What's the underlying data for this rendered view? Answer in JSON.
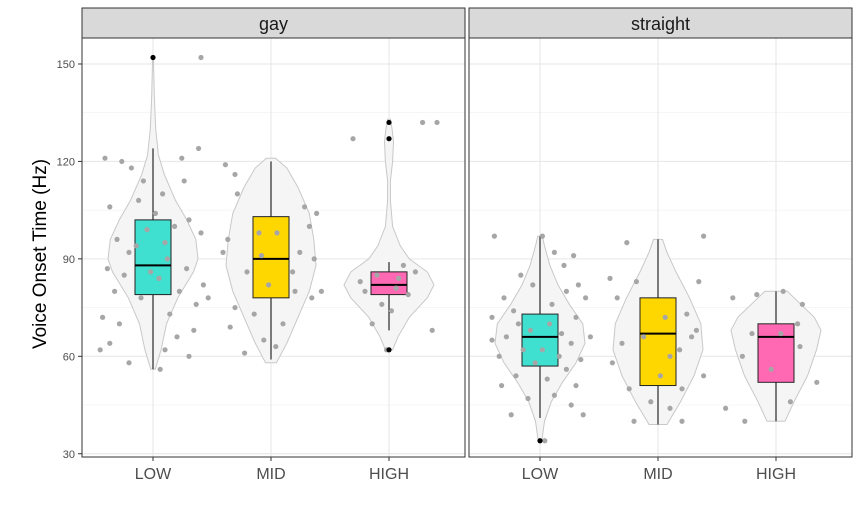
{
  "chart_data": {
    "type": "violin-boxplot",
    "ylabel": "Voice Onset Time (Hz)",
    "ylim": [
      29,
      158
    ],
    "yticks": [
      30,
      60,
      90,
      120,
      150
    ],
    "categories": [
      "LOW",
      "MID",
      "HIGH"
    ],
    "grid": true,
    "colors": {
      "LOW": "#40E0D0",
      "MID": "#FFD700",
      "HIGH": "#FF69B4"
    },
    "panels": [
      {
        "facet": "gay",
        "groups": [
          {
            "category": "LOW",
            "box": {
              "q1": 79,
              "median": 88,
              "q3": 102,
              "whisker_low": 56,
              "whisker_high": 124
            },
            "outliers": [
              152
            ],
            "violin": [
              [
                56,
                0.05
              ],
              [
                62,
                0.18
              ],
              [
                70,
                0.3
              ],
              [
                78,
                0.55
              ],
              [
                86,
                0.9
              ],
              [
                90,
                1.0
              ],
              [
                96,
                0.95
              ],
              [
                102,
                0.75
              ],
              [
                108,
                0.5
              ],
              [
                116,
                0.25
              ],
              [
                122,
                0.12
              ],
              [
                130,
                0.06
              ],
              [
                140,
                0.03
              ],
              [
                152,
                0.01
              ]
            ],
            "points": [
              [
                -0.4,
                121
              ],
              [
                -0.26,
                120
              ],
              [
                -0.18,
                118
              ],
              [
                0.24,
                121
              ],
              [
                0.38,
                124
              ],
              [
                -0.36,
                106
              ],
              [
                -0.12,
                108
              ],
              [
                0.08,
                110
              ],
              [
                0.3,
                102
              ],
              [
                0.4,
                98
              ],
              [
                -0.3,
                96
              ],
              [
                -0.2,
                92
              ],
              [
                0.18,
                100
              ],
              [
                -0.05,
                99
              ],
              [
                0.1,
                95
              ],
              [
                -0.38,
                87
              ],
              [
                -0.24,
                85
              ],
              [
                0.28,
                87
              ],
              [
                0.42,
                82
              ],
              [
                -0.32,
                80
              ],
              [
                0.22,
                80
              ],
              [
                0.36,
                76
              ],
              [
                -0.1,
                78
              ],
              [
                0.05,
                84
              ],
              [
                -0.42,
                72
              ],
              [
                -0.28,
                70
              ],
              [
                0.14,
                73
              ],
              [
                -0.36,
                64
              ],
              [
                0.2,
                66
              ],
              [
                0.3,
                60
              ],
              [
                -0.2,
                58
              ],
              [
                0.06,
                56
              ],
              [
                -0.44,
                62
              ],
              [
                0.34,
                68
              ],
              [
                -0.02,
                86
              ],
              [
                0.12,
                90
              ],
              [
                -0.14,
                94
              ],
              [
                0.02,
                104
              ],
              [
                0.26,
                114
              ],
              [
                -0.08,
                114
              ],
              [
                0.4,
                152
              ],
              [
                0.46,
                78
              ],
              [
                0.1,
                62
              ]
            ]
          },
          {
            "category": "MID",
            "box": {
              "q1": 78,
              "median": 90,
              "q3": 103,
              "whisker_low": 59,
              "whisker_high": 120
            },
            "outliers": [],
            "violin": [
              [
                58,
                0.12
              ],
              [
                64,
                0.35
              ],
              [
                72,
                0.6
              ],
              [
                80,
                0.85
              ],
              [
                88,
                1.0
              ],
              [
                96,
                0.95
              ],
              [
                104,
                0.85
              ],
              [
                112,
                0.6
              ],
              [
                118,
                0.35
              ],
              [
                121,
                0.1
              ]
            ],
            "points": [
              [
                -0.38,
                119
              ],
              [
                -0.3,
                116
              ],
              [
                -0.28,
                110
              ],
              [
                0.28,
                106
              ],
              [
                0.38,
                104
              ],
              [
                -0.36,
                96
              ],
              [
                -0.1,
                98
              ],
              [
                0.05,
                98
              ],
              [
                -0.4,
                92
              ],
              [
                0.24,
                92
              ],
              [
                0.36,
                90
              ],
              [
                -0.2,
                86
              ],
              [
                -0.02,
                82
              ],
              [
                0.2,
                80
              ],
              [
                0.34,
                78
              ],
              [
                -0.3,
                75
              ],
              [
                -0.14,
                73
              ],
              [
                0.1,
                70
              ],
              [
                -0.34,
                69
              ],
              [
                -0.06,
                65
              ],
              [
                0.04,
                63
              ],
              [
                -0.22,
                61
              ],
              [
                0.42,
                80
              ],
              [
                0.32,
                100
              ],
              [
                0.18,
                86
              ],
              [
                -0.08,
                91
              ]
            ]
          },
          {
            "category": "HIGH",
            "box": {
              "q1": 79,
              "median": 82,
              "q3": 86,
              "whisker_low": 68,
              "whisker_high": 89
            },
            "outliers": [
              62,
              127,
              132
            ],
            "violin": [
              [
                62,
                0.08
              ],
              [
                66,
                0.2
              ],
              [
                72,
                0.45
              ],
              [
                78,
                0.85
              ],
              [
                82,
                1.0
              ],
              [
                86,
                0.85
              ],
              [
                90,
                0.45
              ],
              [
                94,
                0.25
              ],
              [
                100,
                0.08
              ],
              [
                108,
                0.03
              ],
              [
                114,
                0.03
              ],
              [
                120,
                0.08
              ],
              [
                126,
                0.1
              ],
              [
                130,
                0.07
              ],
              [
                133,
                0.03
              ]
            ],
            "points": [
              [
                -0.3,
                127
              ],
              [
                0.28,
                132
              ],
              [
                -0.1,
                85
              ],
              [
                0.08,
                84
              ],
              [
                -0.2,
                80
              ],
              [
                0.16,
                79
              ],
              [
                -0.06,
                76
              ],
              [
                0.02,
                74
              ],
              [
                -0.14,
                70
              ],
              [
                0.22,
                86
              ],
              [
                -0.24,
                83
              ],
              [
                0.06,
                81
              ],
              [
                0.36,
                68
              ],
              [
                -0.02,
                62
              ],
              [
                0.4,
                132
              ],
              [
                0.12,
                88
              ]
            ]
          }
        ]
      },
      {
        "facet": "straight",
        "groups": [
          {
            "category": "LOW",
            "box": {
              "q1": 57,
              "median": 66,
              "q3": 73,
              "whisker_low": 41,
              "whisker_high": 97
            },
            "outliers": [
              34
            ],
            "violin": [
              [
                34,
                0.04
              ],
              [
                40,
                0.1
              ],
              [
                46,
                0.25
              ],
              [
                52,
                0.5
              ],
              [
                58,
                0.8
              ],
              [
                64,
                1.0
              ],
              [
                70,
                0.95
              ],
              [
                76,
                0.65
              ],
              [
                82,
                0.4
              ],
              [
                88,
                0.22
              ],
              [
                94,
                0.1
              ],
              [
                97,
                0.05
              ]
            ],
            "points": [
              [
                -0.38,
                97
              ],
              [
                0.02,
                97
              ],
              [
                0.12,
                92
              ],
              [
                0.28,
                91
              ],
              [
                -0.16,
                85
              ],
              [
                0.32,
                82
              ],
              [
                0.22,
                80
              ],
              [
                -0.3,
                78
              ],
              [
                0.38,
                78
              ],
              [
                -0.22,
                74
              ],
              [
                0.3,
                72
              ],
              [
                -0.4,
                72
              ],
              [
                0.08,
                70
              ],
              [
                -0.08,
                68
              ],
              [
                0.18,
                67
              ],
              [
                -0.28,
                66
              ],
              [
                0.26,
                64
              ],
              [
                0.02,
                62
              ],
              [
                -0.14,
                62
              ],
              [
                0.16,
                60
              ],
              [
                -0.34,
                60
              ],
              [
                0.34,
                59
              ],
              [
                -0.04,
                58
              ],
              [
                0.22,
                56
              ],
              [
                -0.2,
                54
              ],
              [
                0.06,
                53
              ],
              [
                0.3,
                51
              ],
              [
                -0.32,
                51
              ],
              [
                0.12,
                48
              ],
              [
                -0.1,
                47
              ],
              [
                0.26,
                45
              ],
              [
                0.36,
                42
              ],
              [
                -0.24,
                42
              ],
              [
                0.42,
                66
              ],
              [
                -0.4,
                65
              ],
              [
                0.1,
                76
              ],
              [
                -0.06,
                82
              ],
              [
                0.2,
                88
              ],
              [
                -0.18,
                70
              ],
              [
                0.04,
                34
              ]
            ]
          },
          {
            "category": "MID",
            "box": {
              "q1": 51,
              "median": 67,
              "q3": 78,
              "whisker_low": 39,
              "whisker_high": 96
            },
            "outliers": [],
            "violin": [
              [
                39,
                0.2
              ],
              [
                46,
                0.5
              ],
              [
                54,
                0.8
              ],
              [
                62,
                1.0
              ],
              [
                70,
                0.95
              ],
              [
                78,
                0.7
              ],
              [
                86,
                0.4
              ],
              [
                92,
                0.2
              ],
              [
                96,
                0.1
              ]
            ],
            "points": [
              [
                -0.26,
                95
              ],
              [
                0.38,
                97
              ],
              [
                -0.4,
                84
              ],
              [
                -0.18,
                83
              ],
              [
                0.34,
                83
              ],
              [
                -0.34,
                78
              ],
              [
                0.24,
                73
              ],
              [
                0.32,
                68
              ],
              [
                0.28,
                66
              ],
              [
                -0.3,
                64
              ],
              [
                0.18,
                62
              ],
              [
                0.1,
                60
              ],
              [
                -0.38,
                58
              ],
              [
                0.02,
                54
              ],
              [
                0.38,
                54
              ],
              [
                -0.24,
                50
              ],
              [
                0.2,
                50
              ],
              [
                -0.06,
                46
              ],
              [
                0.1,
                44
              ],
              [
                -0.2,
                40
              ],
              [
                0.2,
                40
              ],
              [
                0.06,
                72
              ],
              [
                -0.12,
                66
              ]
            ]
          },
          {
            "category": "HIGH",
            "box": {
              "q1": 52,
              "median": 66,
              "q3": 70,
              "whisker_low": 40,
              "whisker_high": 80
            },
            "outliers": [],
            "violin": [
              [
                40,
                0.2
              ],
              [
                46,
                0.4
              ],
              [
                54,
                0.7
              ],
              [
                62,
                0.9
              ],
              [
                68,
                1.0
              ],
              [
                72,
                0.85
              ],
              [
                76,
                0.55
              ],
              [
                80,
                0.25
              ]
            ],
            "points": [
              [
                -0.36,
                78
              ],
              [
                -0.16,
                79
              ],
              [
                0.06,
                80
              ],
              [
                0.18,
                70
              ],
              [
                -0.2,
                67
              ],
              [
                0.04,
                67
              ],
              [
                0.22,
                76
              ],
              [
                -0.28,
                60
              ],
              [
                0.2,
                63
              ],
              [
                -0.42,
                44
              ],
              [
                0.34,
                52
              ],
              [
                -0.26,
                40
              ],
              [
                0.12,
                46
              ],
              [
                -0.04,
                56
              ]
            ]
          }
        ]
      }
    ]
  }
}
